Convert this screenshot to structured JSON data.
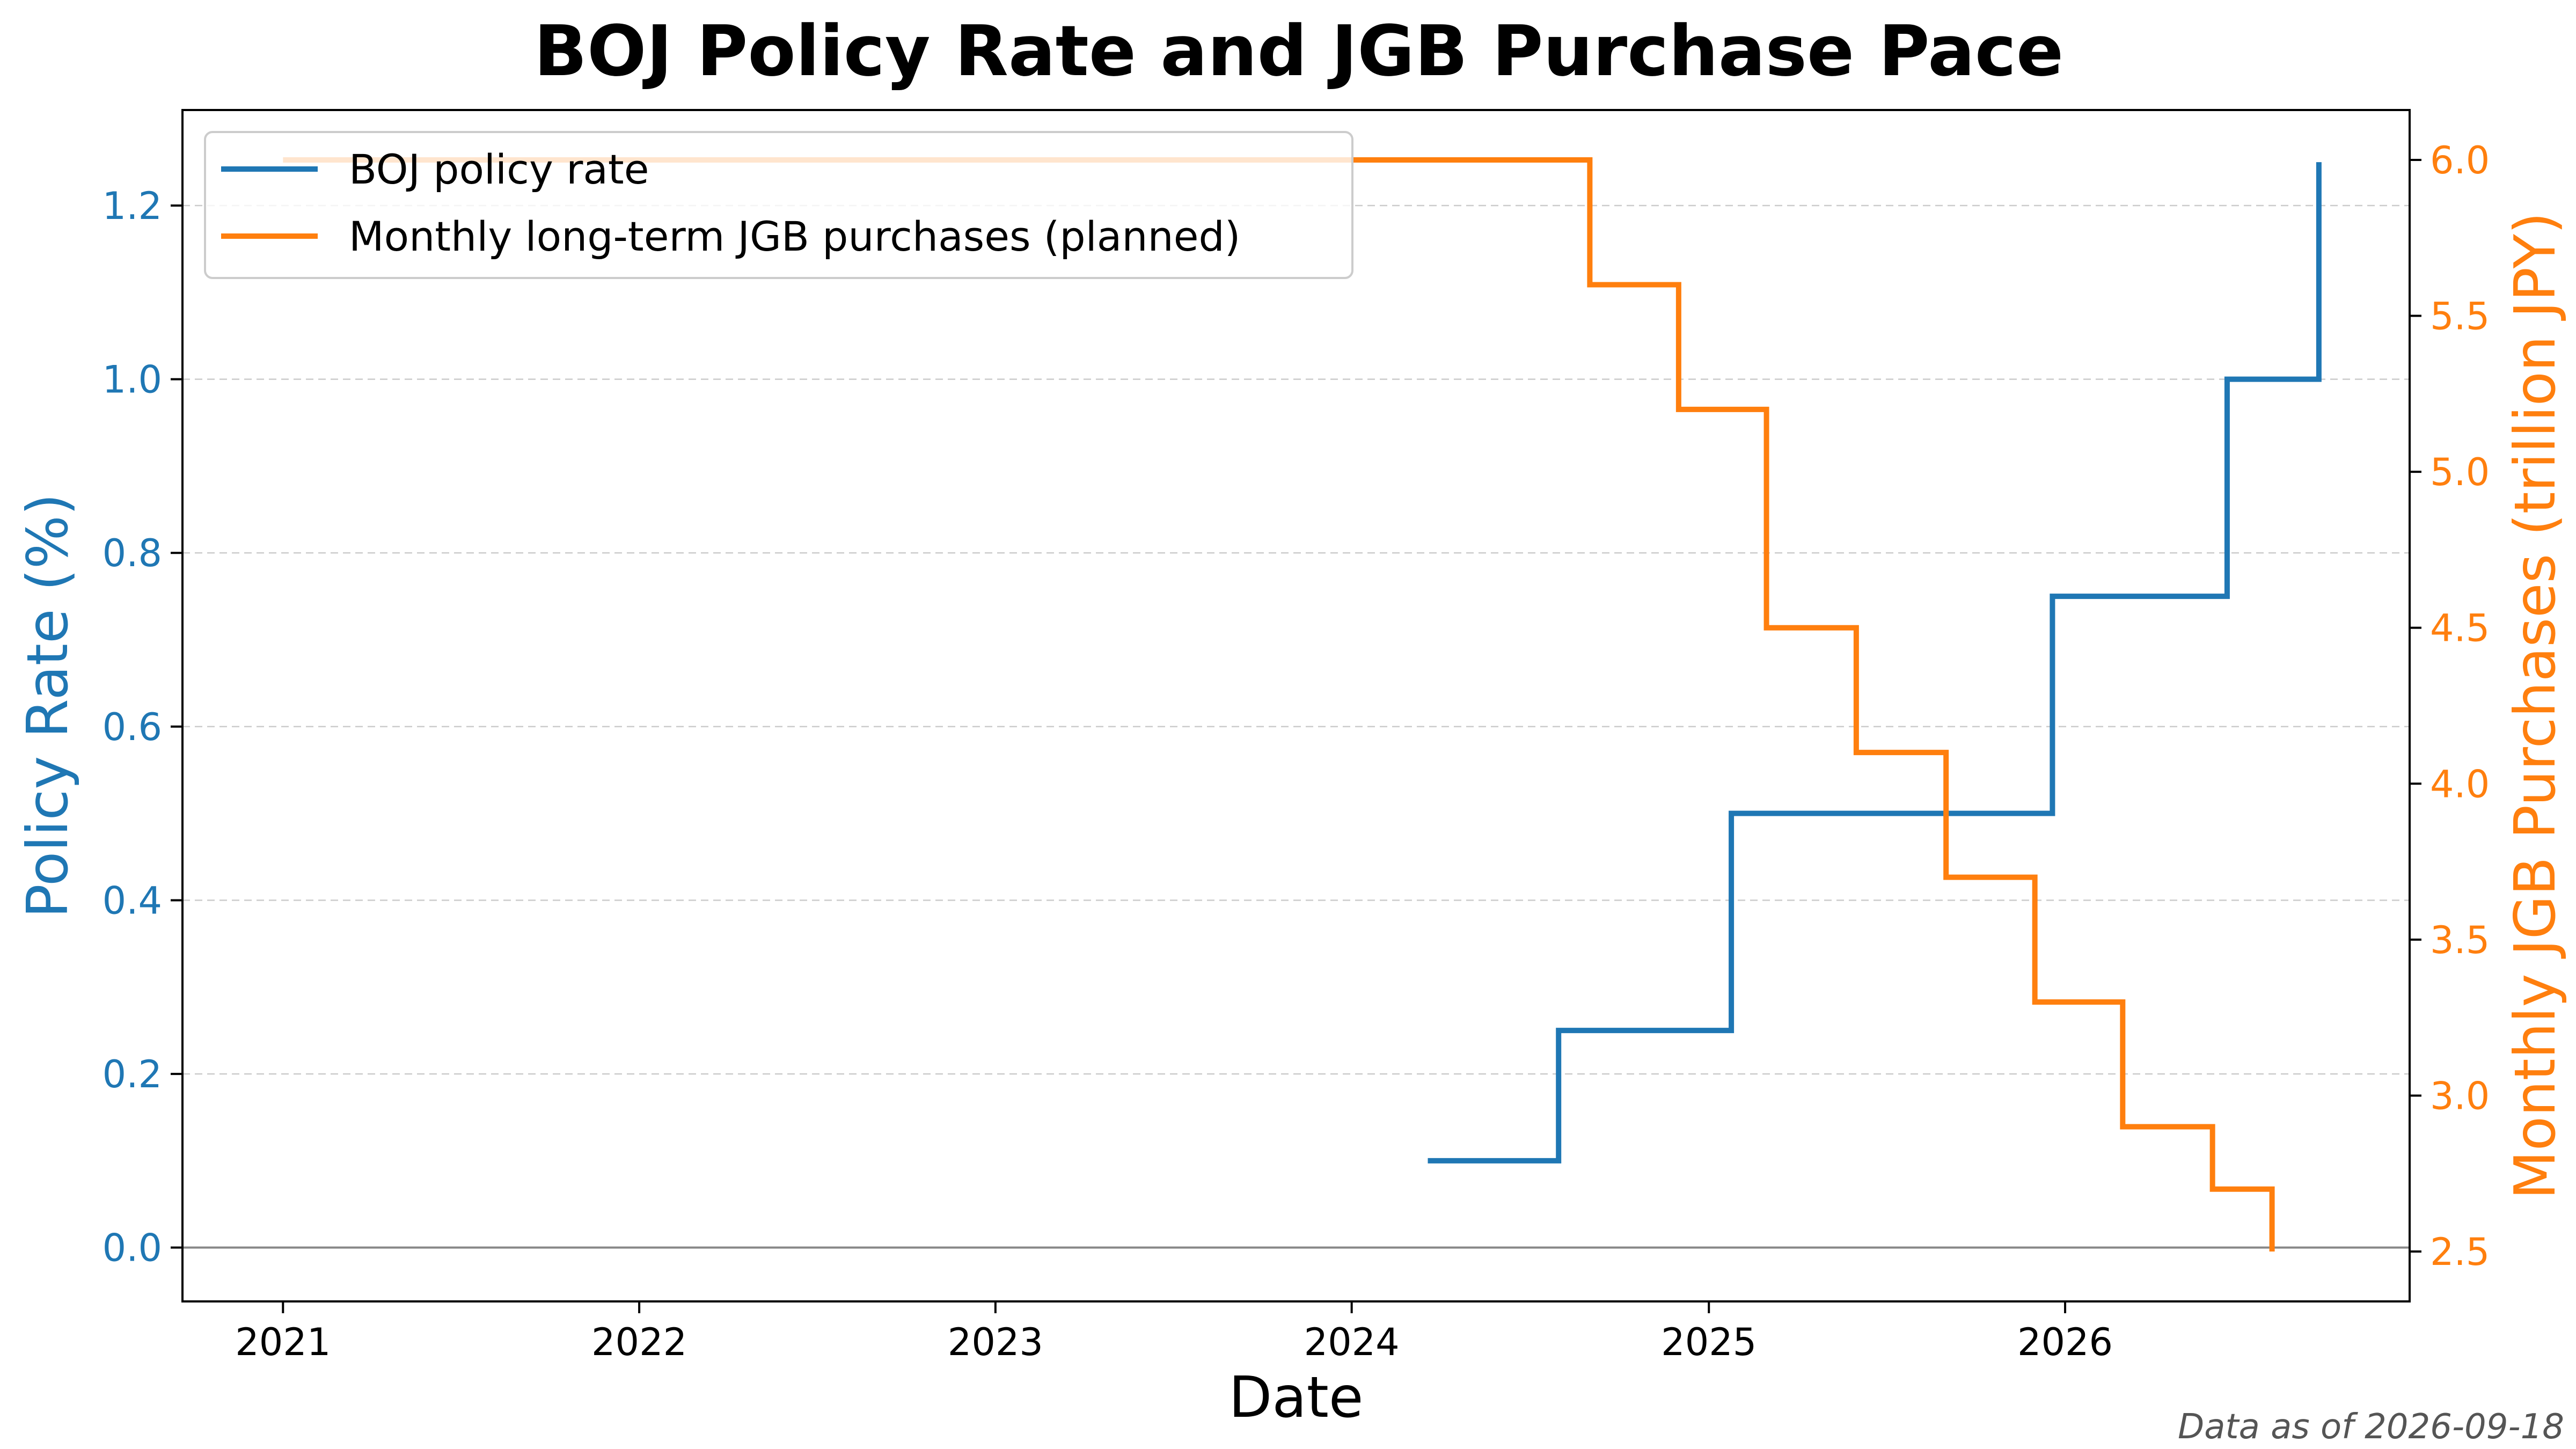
{
  "chart_data": {
    "type": "line",
    "title": "BOJ Policy Rate and JGB Purchase Pace",
    "xlabel": "Date",
    "ylabel_left": "Policy Rate (%)",
    "ylabel_right": "Monthly JGB Purchases (trillion JPY)",
    "x_ticks": [
      "2021",
      "2022",
      "2023",
      "2024",
      "2025",
      "2026"
    ],
    "xlim": [
      "2020-09-20",
      "2026-12-20"
    ],
    "ylim_left": [
      -0.062,
      1.31
    ],
    "ylim_right": [
      2.34,
      6.16
    ],
    "y_ticks_left": [
      "0.0",
      "0.2",
      "0.4",
      "0.6",
      "0.8",
      "1.0",
      "1.2"
    ],
    "y_ticks_right": [
      "2.5",
      "3.0",
      "3.5",
      "4.0",
      "4.5",
      "5.0",
      "5.5",
      "6.0"
    ],
    "grid": "horizontal dashed",
    "legend": "upper-left",
    "series": [
      {
        "name": "BOJ policy rate",
        "axis": "left",
        "color": "#1f77b4",
        "step": "post",
        "x": [
          "2024-03-19",
          "2024-07-31",
          "2025-01-24",
          "2025-12-19",
          "2026-06-16",
          "2026-09-18"
        ],
        "y": [
          0.1,
          0.25,
          0.5,
          0.75,
          1.0,
          1.25
        ]
      },
      {
        "name": "Monthly long-term JGB purchases (planned)",
        "axis": "right",
        "color": "#ff7f0e",
        "step": "post",
        "x": [
          "2021-01-01",
          "2024-09-01",
          "2024-12-01",
          "2025-03-01",
          "2025-06-01",
          "2025-09-01",
          "2025-12-01",
          "2026-03-01",
          "2026-06-01",
          "2026-08-01"
        ],
        "y": [
          6.0,
          5.6,
          5.2,
          4.5,
          4.1,
          3.7,
          3.3,
          2.9,
          2.7,
          2.5
        ]
      }
    ],
    "colors": {
      "left_axis": "#1f77b4",
      "right_axis": "#ff7f0e"
    }
  },
  "footnote": "Data as of 2026-09-18"
}
